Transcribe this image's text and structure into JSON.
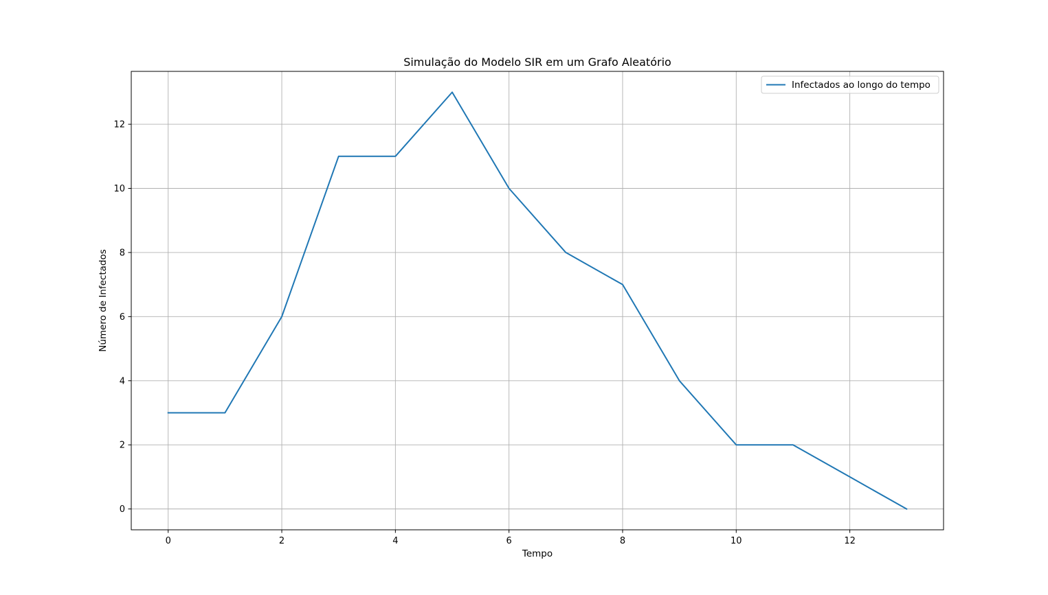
{
  "chart_data": {
    "type": "line",
    "title": "Simulação do Modelo SIR em um Grafo Aleatório",
    "xlabel": "Tempo",
    "ylabel": "Número de Infectados",
    "x": [
      0,
      1,
      2,
      3,
      4,
      5,
      6,
      7,
      8,
      9,
      10,
      11,
      12,
      13
    ],
    "series": [
      {
        "name": "Infectados ao longo do tempo",
        "color": "#1f77b4",
        "values": [
          3,
          3,
          6,
          11,
          11,
          13,
          10,
          8,
          7,
          4,
          2,
          2,
          1,
          0
        ]
      }
    ],
    "xlim": [
      -0.65,
      13.65
    ],
    "ylim": [
      -0.65,
      13.65
    ],
    "xticks": [
      0,
      2,
      4,
      6,
      8,
      10,
      12
    ],
    "yticks": [
      0,
      2,
      4,
      6,
      8,
      10,
      12
    ],
    "xtick_labels": [
      "0",
      "2",
      "4",
      "6",
      "8",
      "10",
      "12"
    ],
    "ytick_labels": [
      "0",
      "2",
      "4",
      "6",
      "8",
      "10",
      "12"
    ],
    "grid": true,
    "grid_color": "#b0b0b0",
    "legend_position": "top-right"
  }
}
